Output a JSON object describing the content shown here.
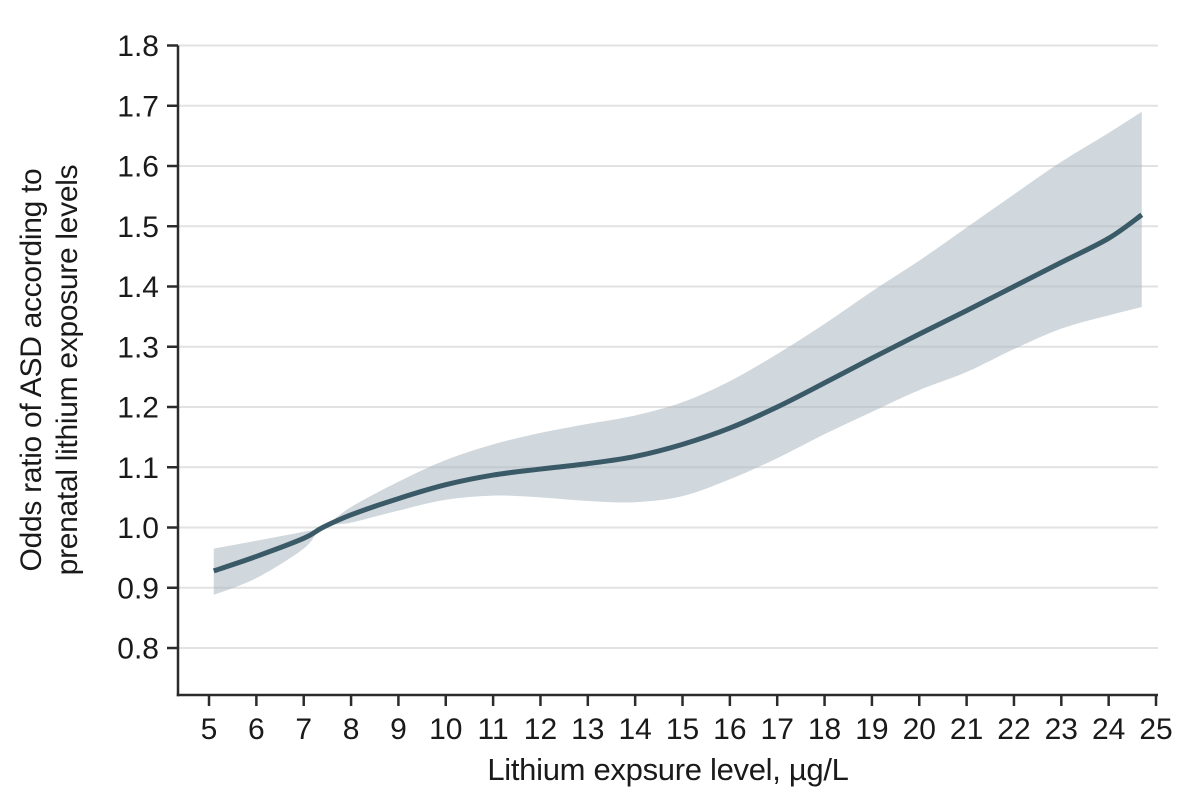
{
  "chart_data": {
    "type": "line",
    "xlabel": "Lithium expsure level, µg/L",
    "ylabel_line1": "Odds ratio of ASD according to",
    "ylabel_line2": "prenatal lithium exposure levels",
    "xlim": [
      4.345,
      25.042
    ],
    "ylim": [
      0.722,
      1.8
    ],
    "x_ticks": [
      5,
      6,
      7,
      8,
      9,
      10,
      11,
      12,
      13,
      14,
      15,
      16,
      17,
      18,
      19,
      20,
      21,
      22,
      23,
      24,
      25
    ],
    "y_ticks": [
      0.8,
      0.9,
      1.0,
      1.1,
      1.2,
      1.3,
      1.4,
      1.5,
      1.6,
      1.7,
      1.8
    ],
    "grid": "horizontal",
    "legend_position": "none",
    "x": [
      5.1,
      6,
      7,
      7.4,
      8,
      9,
      10,
      11,
      12,
      13,
      14,
      15,
      16,
      17,
      18,
      19,
      20,
      21,
      22,
      23,
      24,
      24.7
    ],
    "series": [
      {
        "name": "Odds ratio spline curve",
        "type": "line",
        "values": [
          0.928,
          0.952,
          0.982,
          1.0,
          1.021,
          1.048,
          1.071,
          1.087,
          1.097,
          1.106,
          1.118,
          1.138,
          1.165,
          1.2,
          1.24,
          1.281,
          1.321,
          1.36,
          1.4,
          1.44,
          1.48,
          1.519
        ]
      },
      {
        "name": "95% confidence band lower edge",
        "type": "band-lower",
        "values": [
          0.888,
          0.916,
          0.965,
          1.0,
          1.008,
          1.028,
          1.046,
          1.053,
          1.05,
          1.044,
          1.042,
          1.052,
          1.08,
          1.115,
          1.155,
          1.192,
          1.228,
          1.258,
          1.296,
          1.33,
          1.352,
          1.366
        ]
      },
      {
        "name": "95% confidence band upper edge",
        "type": "band-upper",
        "values": [
          0.965,
          0.978,
          0.993,
          1.0,
          1.034,
          1.076,
          1.112,
          1.138,
          1.157,
          1.172,
          1.186,
          1.208,
          1.243,
          1.288,
          1.338,
          1.392,
          1.443,
          1.498,
          1.553,
          1.607,
          1.655,
          1.69
        ]
      }
    ]
  },
  "colors": {
    "curve": "#3b5a67",
    "band_fill": "rgba(170,184,193,0.55)",
    "grid": "#e2e2e2",
    "axis": "#2b2b2b",
    "text": "#1a1a1a",
    "background": "#ffffff"
  }
}
